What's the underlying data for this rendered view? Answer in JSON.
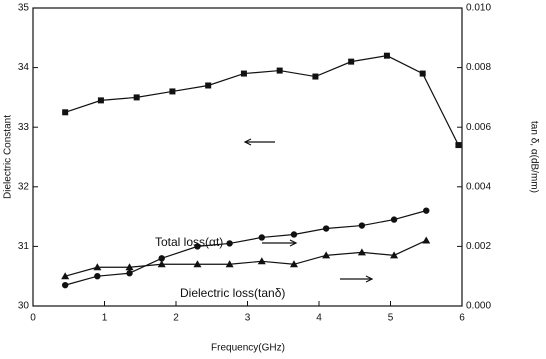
{
  "chart_data": {
    "type": "line",
    "xlabel": "Frequency(GHz)",
    "ylabel": "Dielectric Constant",
    "y2label": "tan δ, α(dB/mm)",
    "xlim": [
      0,
      6
    ],
    "xticks": [
      0,
      1,
      2,
      3,
      4,
      5,
      6
    ],
    "ylim": [
      30,
      35
    ],
    "yticks": [
      30,
      31,
      32,
      33,
      34,
      35
    ],
    "y2lim": [
      0,
      0.01
    ],
    "y2ticks": [
      {
        "value": 0,
        "label": "0.000"
      },
      0.002,
      0.004,
      0.006,
      0.008,
      {
        "value": 0.01,
        "label": "0.010"
      }
    ],
    "series": [
      {
        "name": "Dielectric Constant",
        "marker": "square",
        "color": "#111111",
        "x": [
          0.45,
          0.95,
          1.45,
          1.95,
          2.45,
          2.95,
          3.45,
          3.95,
          4.45,
          4.95,
          5.45,
          5.95
        ],
        "values": [
          33.25,
          33.45,
          33.5,
          33.6,
          33.7,
          33.9,
          33.95,
          33.85,
          34.1,
          34.2,
          33.9,
          32.7
        ]
      },
      {
        "name": "Total loss",
        "marker": "circle",
        "color": "#111111",
        "axis": "y2",
        "x": [
          0.45,
          0.9,
          1.35,
          1.8,
          2.3,
          2.75,
          3.2,
          3.65,
          4.1,
          4.6,
          5.05,
          5.5
        ],
        "values": [
          0.0007,
          0.001,
          0.0011,
          0.0016,
          0.002,
          0.0021,
          0.0023,
          0.0024,
          0.0026,
          0.0027,
          0.0029,
          0.0032
        ]
      },
      {
        "name": "Dielectric loss",
        "marker": "triangle",
        "color": "#111111",
        "axis": "y2",
        "x": [
          0.45,
          0.9,
          1.35,
          1.8,
          2.3,
          2.75,
          3.2,
          3.65,
          4.1,
          4.6,
          5.05,
          5.5
        ],
        "values": [
          0.001,
          0.0013,
          0.0013,
          0.0014,
          0.0014,
          0.0014,
          0.0015,
          0.0014,
          0.0017,
          0.0018,
          0.0017,
          0.0022
        ]
      }
    ],
    "annotations": [
      "Total loss(αt)",
      "Dielectric loss(tanδ)"
    ]
  }
}
